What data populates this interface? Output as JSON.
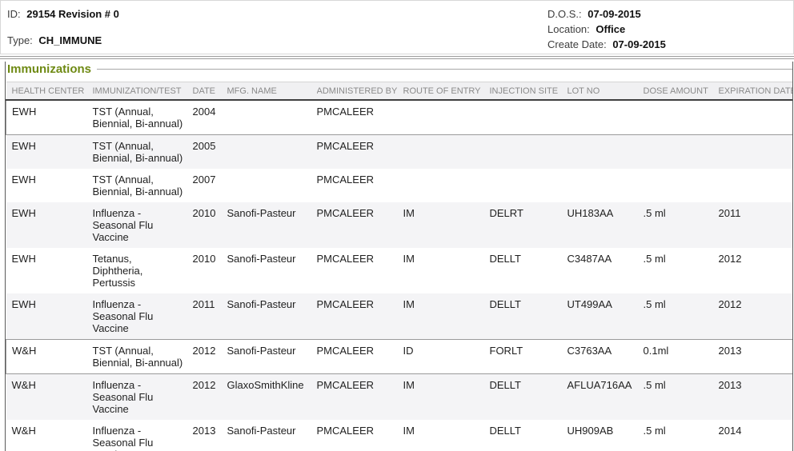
{
  "header": {
    "id_label": "ID:",
    "id_value": "29154 Revision # 0",
    "type_label": "Type:",
    "type_value": "CH_IMMUNE",
    "dos_label": "D.O.S.:",
    "dos_value": "07-09-2015",
    "location_label": "Location:",
    "location_value": "Office",
    "create_date_label": "Create Date:",
    "create_date_value": "07-09-2015"
  },
  "section": {
    "title": "Immunizations"
  },
  "colors": {
    "section_title_accent": "#6f8a14",
    "header_underline": "#3f3f3f",
    "row_alternate": "#f4f4f6",
    "highlight_row_border": "#9a9a9a"
  },
  "table": {
    "columns": [
      "HEALTH CENTER",
      "IMMUNIZATION/TEST",
      "DATE",
      "MFG. NAME",
      "ADMINISTERED BY",
      "ROUTE OF ENTRY",
      "INJECTION SITE",
      "LOT NO",
      "DOSE AMOUNT",
      "EXPIRATION DATE"
    ],
    "rows": [
      {
        "health_center": "EWH",
        "immunization": "TST (Annual,\nBiennial, Bi-annual)",
        "date": "2004",
        "mfg": "",
        "administered_by": "PMCALEER",
        "route": "",
        "site": "",
        "lot": "",
        "dose": "",
        "expiration": "",
        "highlighted": true
      },
      {
        "health_center": "EWH",
        "immunization": "TST (Annual,\nBiennial, Bi-annual)",
        "date": "2005",
        "mfg": "",
        "administered_by": "PMCALEER",
        "route": "",
        "site": "",
        "lot": "",
        "dose": "",
        "expiration": "",
        "highlighted": false
      },
      {
        "health_center": "EWH",
        "immunization": "TST (Annual,\nBiennial, Bi-annual)",
        "date": "2007",
        "mfg": "",
        "administered_by": "PMCALEER",
        "route": "",
        "site": "",
        "lot": "",
        "dose": "",
        "expiration": "",
        "highlighted": false
      },
      {
        "health_center": "EWH",
        "immunization": "Influenza -\nSeasonal Flu\nVaccine",
        "date": "2010",
        "mfg": "Sanofi-Pasteur",
        "administered_by": "PMCALEER",
        "route": "IM",
        "site": "DELRT",
        "lot": "UH183AA",
        "dose": ".5 ml",
        "expiration": "2011",
        "highlighted": false
      },
      {
        "health_center": "EWH",
        "immunization": "Tetanus,\nDiphtheria,\nPertussis",
        "date": "2010",
        "mfg": "Sanofi-Pasteur",
        "administered_by": "PMCALEER",
        "route": "IM",
        "site": "DELLT",
        "lot": "C3487AA",
        "dose": ".5 ml",
        "expiration": "2012",
        "highlighted": false
      },
      {
        "health_center": "EWH",
        "immunization": "Influenza -\nSeasonal Flu\nVaccine",
        "date": "2011",
        "mfg": "Sanofi-Pasteur",
        "administered_by": "PMCALEER",
        "route": "IM",
        "site": "DELLT",
        "lot": "UT499AA",
        "dose": ".5 ml",
        "expiration": "2012",
        "highlighted": false
      },
      {
        "health_center": "W&H",
        "immunization": "TST (Annual,\nBiennial, Bi-annual)",
        "date": "2012",
        "mfg": "Sanofi-Pasteur",
        "administered_by": "PMCALEER",
        "route": "ID",
        "site": "FORLT",
        "lot": "C3763AA",
        "dose": "0.1ml",
        "expiration": "2013",
        "highlighted": true
      },
      {
        "health_center": "W&H",
        "immunization": "Influenza -\nSeasonal Flu\nVaccine",
        "date": "2012",
        "mfg": "GlaxoSmithKline",
        "administered_by": "PMCALEER",
        "route": "IM",
        "site": "DELLT",
        "lot": "AFLUA716AA",
        "dose": ".5 ml",
        "expiration": "2013",
        "highlighted": false
      },
      {
        "health_center": "W&H",
        "immunization": "Influenza -\nSeasonal Flu\nVaccine",
        "date": "2013",
        "mfg": "Sanofi-Pasteur",
        "administered_by": "PMCALEER",
        "route": "IM",
        "site": "DELLT",
        "lot": "UH909AB",
        "dose": ".5 ml",
        "expiration": "2014",
        "highlighted": false
      }
    ]
  }
}
